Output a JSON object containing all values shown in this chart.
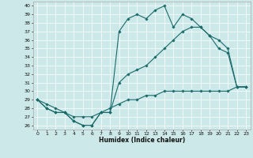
{
  "title": "",
  "xlabel": "Humidex (Indice chaleur)",
  "ylabel": "",
  "bg_color": "#cce8e8",
  "grid_color": "#ffffff",
  "line_color": "#1a6b6b",
  "xlim": [
    -0.5,
    23.5
  ],
  "ylim": [
    25.5,
    40.5
  ],
  "yticks": [
    26,
    27,
    28,
    29,
    30,
    31,
    32,
    33,
    34,
    35,
    36,
    37,
    38,
    39,
    40
  ],
  "xticks": [
    0,
    1,
    2,
    3,
    4,
    5,
    6,
    7,
    8,
    9,
    10,
    11,
    12,
    13,
    14,
    15,
    16,
    17,
    18,
    19,
    20,
    21,
    22,
    23
  ],
  "line1_x": [
    0,
    1,
    2,
    3,
    4,
    5,
    6,
    7,
    8,
    9,
    10,
    11,
    12,
    13,
    14,
    15,
    16,
    17,
    18,
    19,
    20,
    21,
    22,
    23
  ],
  "line1_y": [
    29,
    28,
    27.5,
    27.5,
    26.5,
    26,
    26,
    27.5,
    27.5,
    37,
    38.5,
    39,
    38.5,
    39.5,
    40,
    37.5,
    39,
    38.5,
    37.5,
    36.5,
    35,
    34.5,
    30.5,
    30.5
  ],
  "line2_x": [
    0,
    1,
    2,
    3,
    4,
    5,
    6,
    7,
    8,
    9,
    10,
    11,
    12,
    13,
    14,
    15,
    16,
    17,
    18,
    19,
    20,
    21,
    22,
    23
  ],
  "line2_y": [
    29,
    28,
    27.5,
    27.5,
    26.5,
    26,
    26,
    27.5,
    27.5,
    31,
    32,
    32.5,
    33,
    34,
    35,
    36,
    37,
    37.5,
    37.5,
    36.5,
    36,
    35,
    30.5,
    30.5
  ],
  "line3_x": [
    0,
    1,
    2,
    3,
    4,
    5,
    6,
    7,
    8,
    9,
    10,
    11,
    12,
    13,
    14,
    15,
    16,
    17,
    18,
    19,
    20,
    21,
    22,
    23
  ],
  "line3_y": [
    29,
    28.5,
    28,
    27.5,
    27,
    27,
    27,
    27.5,
    28,
    28.5,
    29,
    29,
    29.5,
    29.5,
    30,
    30,
    30,
    30,
    30,
    30,
    30,
    30,
    30.5,
    30.5
  ]
}
